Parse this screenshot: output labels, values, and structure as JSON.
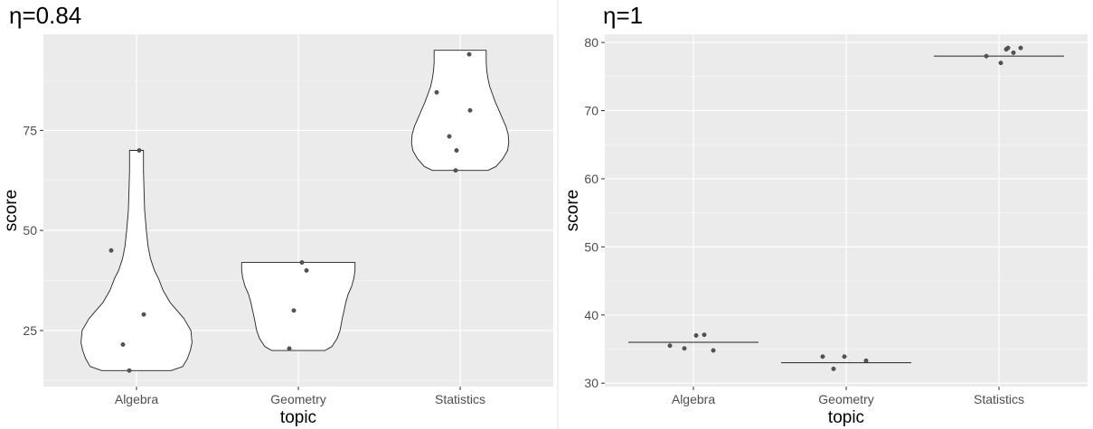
{
  "chart_data": [
    {
      "type": "violin",
      "title": "η=0.84",
      "xlabel": "topic",
      "ylabel": "score",
      "categories": [
        "Algebra",
        "Geometry",
        "Statistics"
      ],
      "ylim": [
        11,
        99
      ],
      "yticks": [
        25,
        50,
        75
      ],
      "grid": true,
      "violins": [
        {
          "category": "Algebra",
          "min": 15,
          "max": 70,
          "profile": [
            [
              15,
              0.6
            ],
            [
              16,
              0.8
            ],
            [
              18,
              0.88
            ],
            [
              20,
              0.93
            ],
            [
              22,
              0.96
            ],
            [
              25,
              0.94
            ],
            [
              28,
              0.82
            ],
            [
              30,
              0.7
            ],
            [
              32,
              0.58
            ],
            [
              35,
              0.46
            ],
            [
              38,
              0.38
            ],
            [
              40,
              0.31
            ],
            [
              43,
              0.24
            ],
            [
              46,
              0.2
            ],
            [
              50,
              0.17
            ],
            [
              55,
              0.14
            ],
            [
              60,
              0.13
            ],
            [
              65,
              0.12
            ],
            [
              70,
              0.12
            ]
          ]
        },
        {
          "category": "Geometry",
          "min": 20,
          "max": 42,
          "profile": [
            [
              20,
              0.46
            ],
            [
              21,
              0.58
            ],
            [
              23,
              0.67
            ],
            [
              25,
              0.72
            ],
            [
              28,
              0.76
            ],
            [
              30,
              0.79
            ],
            [
              32,
              0.82
            ],
            [
              34,
              0.86
            ],
            [
              36,
              0.92
            ],
            [
              38,
              0.96
            ],
            [
              40,
              0.98
            ],
            [
              42,
              0.98
            ]
          ]
        },
        {
          "category": "Statistics",
          "min": 65,
          "max": 95,
          "profile": [
            [
              65,
              0.48
            ],
            [
              66,
              0.62
            ],
            [
              68,
              0.74
            ],
            [
              70,
              0.82
            ],
            [
              72,
              0.84
            ],
            [
              74,
              0.83
            ],
            [
              76,
              0.79
            ],
            [
              78,
              0.73
            ],
            [
              80,
              0.67
            ],
            [
              82,
              0.61
            ],
            [
              84,
              0.56
            ],
            [
              86,
              0.51
            ],
            [
              88,
              0.48
            ],
            [
              90,
              0.46
            ],
            [
              92,
              0.45
            ],
            [
              95,
              0.45
            ]
          ]
        }
      ],
      "points": [
        {
          "category": "Algebra",
          "values": [
            15,
            21.5,
            29,
            45,
            70
          ]
        },
        {
          "category": "Geometry",
          "values": [
            20.5,
            30,
            40,
            42
          ]
        },
        {
          "category": "Statistics",
          "values": [
            65,
            70,
            73.5,
            80,
            84.5,
            94
          ]
        }
      ]
    },
    {
      "type": "violin",
      "title": "η=1",
      "xlabel": "topic",
      "ylabel": "score",
      "categories": [
        "Algebra",
        "Geometry",
        "Statistics"
      ],
      "ylim": [
        29.5,
        81.2
      ],
      "yticks": [
        30,
        40,
        50,
        60,
        70,
        80
      ],
      "grid": true,
      "lines": [
        {
          "category": "Algebra",
          "value": 36
        },
        {
          "category": "Geometry",
          "value": 33
        },
        {
          "category": "Statistics",
          "value": 78
        }
      ],
      "points": [
        {
          "category": "Algebra",
          "values": [
            35.5,
            35.1,
            37,
            37.1,
            34.8
          ]
        },
        {
          "category": "Geometry",
          "values": [
            33.9,
            32.1,
            33.9,
            33.3
          ]
        },
        {
          "category": "Statistics",
          "values": [
            78,
            77,
            79,
            78.5,
            79.2,
            79.2
          ]
        }
      ]
    }
  ]
}
